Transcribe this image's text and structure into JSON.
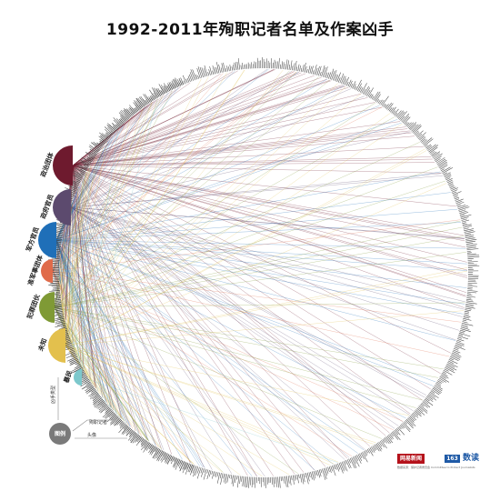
{
  "title": "1992-2011年殉职记者名单及作案凶手",
  "categories": [
    {
      "label": "政治团体",
      "color": "#6e1a2e",
      "count": 260
    },
    {
      "label": "政府官员",
      "color": "#5c4a6e",
      "count": 140
    },
    {
      "label": "军方官员",
      "color": "#1f6fb8",
      "count": 165
    },
    {
      "label": "准军事团体",
      "color": "#e06b4a",
      "count": 55
    },
    {
      "label": "犯罪团伙",
      "color": "#7f9a35",
      "count": 100
    },
    {
      "label": "未知",
      "color": "#e3c04d",
      "count": 150
    },
    {
      "label": "暴民",
      "color": "#7cc8cc",
      "count": 20
    }
  ],
  "legend": {
    "icon_label": "图例",
    "item1": "凶手类型",
    "item2": "殉职记者",
    "item3": "头像"
  },
  "brand": {
    "badge_red": "网易新闻",
    "badge_blue": "163",
    "text": "数读",
    "caption": "数据来源：保护记者委员会 Committee to Protect Journalists"
  },
  "chart_data": {
    "type": "diagram",
    "title": "1992-2011年殉职记者名单及作案凶手",
    "nodes": [
      "政治团体",
      "政府官员",
      "军方官员",
      "准军事团体",
      "犯罪团伙",
      "未知",
      "暴民"
    ],
    "link_counts": [
      260,
      140,
      165,
      55,
      100,
      150,
      20
    ]
  }
}
